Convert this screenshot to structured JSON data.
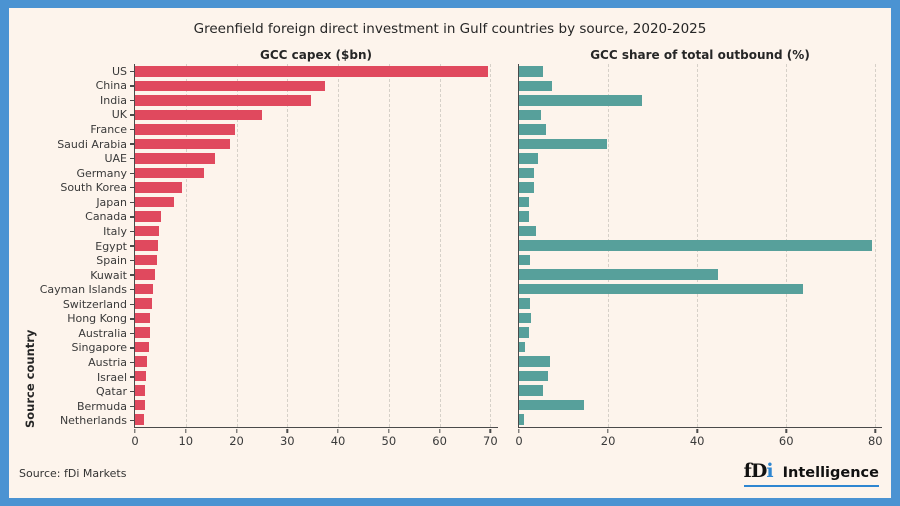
{
  "header": {
    "title": "Greenfield foreign direct investment in Gulf countries by source, 2020-2025",
    "ylabel": "Source country"
  },
  "chart_data": [
    {
      "type": "bar",
      "orientation": "horizontal",
      "title": "GCC capex ($bn)",
      "categories": [
        "US",
        "China",
        "India",
        "UK",
        "France",
        "Saudi Arabia",
        "UAE",
        "Germany",
        "South Korea",
        "Japan",
        "Canada",
        "Italy",
        "Egypt",
        "Spain",
        "Kuwait",
        "Cayman Islands",
        "Switzerland",
        "Hong Kong",
        "Australia",
        "Singapore",
        "Austria",
        "Israel",
        "Qatar",
        "Bermuda",
        "Netherlands"
      ],
      "values": [
        69.5,
        37.4,
        34.7,
        25.1,
        19.6,
        18.8,
        15.8,
        13.5,
        9.2,
        7.7,
        5.2,
        4.8,
        4.6,
        4.4,
        3.9,
        3.5,
        3.4,
        2.9,
        2.9,
        2.8,
        2.3,
        2.1,
        2.0,
        1.9,
        1.7
      ],
      "xticks": [
        0,
        10,
        20,
        30,
        40,
        50,
        60,
        70
      ],
      "xmax": 71.5,
      "grid": "dashed-vertical",
      "bar_color": "#e0495e"
    },
    {
      "type": "bar",
      "orientation": "horizontal",
      "title": "GCC share of total outbound (%)",
      "categories": [
        "US",
        "China",
        "India",
        "UK",
        "France",
        "Saudi Arabia",
        "UAE",
        "Germany",
        "South Korea",
        "Japan",
        "Canada",
        "Italy",
        "Egypt",
        "Spain",
        "Kuwait",
        "Cayman Islands",
        "Switzerland",
        "Hong Kong",
        "Australia",
        "Singapore",
        "Austria",
        "Israel",
        "Qatar",
        "Bermuda",
        "Netherlands"
      ],
      "values": [
        5.3,
        7.3,
        27.6,
        4.9,
        6.0,
        19.7,
        4.3,
        3.4,
        3.4,
        2.3,
        2.3,
        3.8,
        79.2,
        2.5,
        44.6,
        63.7,
        2.4,
        2.8,
        2.2,
        1.3,
        6.9,
        6.4,
        5.4,
        14.6,
        1.2
      ],
      "xticks": [
        0,
        20,
        40,
        60,
        80
      ],
      "xmax": 81.5,
      "grid": "dashed-vertical",
      "bar_color": "#57a09b"
    }
  ],
  "footer": {
    "source": "Source: fDi Markets",
    "logo_fd": "fD",
    "logo_i": "i",
    "logo_word": "Intelligence"
  },
  "colors": {
    "background": "#fdf4ec",
    "frame": "#4b93d2",
    "capex_bar": "#e0495e",
    "share_bar": "#57a09b",
    "axis": "#4a4a4a",
    "gridline": "#d6d0c8"
  }
}
